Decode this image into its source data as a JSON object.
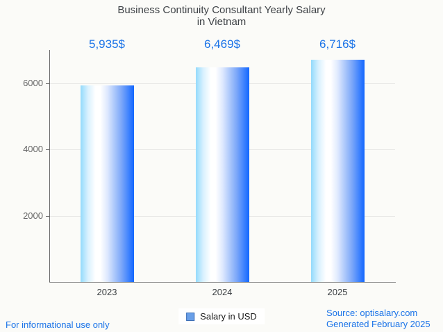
{
  "page": {
    "background": "#fbfbf8"
  },
  "chart": {
    "title_line1": "Business Continuity Consultant Yearly Salary",
    "title_line2": "in Vietnam",
    "legend_label": "Salary in USD"
  },
  "footer": {
    "left": "For informational use only",
    "source": "Source: optisalary.com",
    "generated": "Generated February 2025"
  },
  "chart_data": {
    "type": "bar",
    "title": "Business Continuity Consultant Yearly Salary in Vietnam",
    "categories": [
      "2023",
      "2024",
      "2025"
    ],
    "values": [
      5935,
      6469,
      6716
    ],
    "value_labels": [
      "5,935$",
      "6,469$",
      "6,716$"
    ],
    "series_name": "Salary in USD",
    "ylabel": "",
    "xlabel": "",
    "y_ticks": [
      2000,
      4000,
      6000
    ],
    "ylim": [
      0,
      7000
    ],
    "grid": true,
    "legend_position": "bottom-center",
    "colors": {
      "value_label_text": "#1a73e8",
      "footer_text": "#1a73e8",
      "title_text": "#3f4347",
      "axis_tick_text": "#666666",
      "category_text": "#3c4043",
      "gridline": "#e7e7e5",
      "y_axis_line": "#6b6b6b",
      "x_axis_line": "#8f8f8f",
      "bar_gradient_left": "#93dafc",
      "bar_gradient_mid": "#ffffff",
      "bar_gradient_right": "#1266fe",
      "legend_swatch_fill": "#699fe8",
      "legend_swatch_border": "#3c6eb4"
    }
  }
}
